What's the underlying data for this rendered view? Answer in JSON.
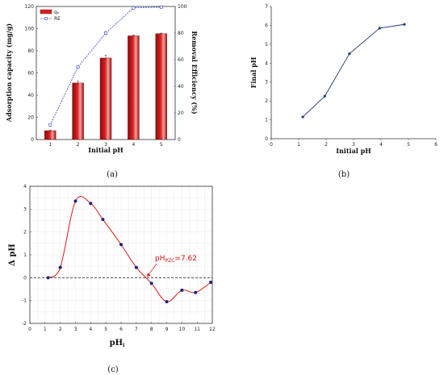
{
  "chart_data": [
    {
      "type": "bar",
      "panel_label": "(a)",
      "xlabel": "Initial pH",
      "ylabel": "Adsorption capacity (mg/g)",
      "y2label": "Removal Efficiency (%)",
      "categories": [
        "1",
        "2",
        "3",
        "4",
        "5"
      ],
      "ylim": [
        0,
        120
      ],
      "y_ticks": [
        "0",
        "20",
        "40",
        "60",
        "80",
        "100",
        "120"
      ],
      "y2lim": [
        0,
        100
      ],
      "y2_ticks": [
        "0",
        "20",
        "40",
        "60",
        "80",
        "100"
      ],
      "legend": {
        "position": "top-left",
        "bar_label": "qₑ",
        "line_label": "RE"
      },
      "bar_color": "#d92020",
      "line_color": "#3344cc",
      "series": [
        {
          "name": "qₑ",
          "axis": "left",
          "kind": "bar",
          "values": [
            8,
            51,
            73.5,
            93.5,
            95.5
          ],
          "errors": [
            0.5,
            1.5,
            2.5,
            0.8,
            0.5
          ]
        },
        {
          "name": "RE",
          "axis": "right",
          "kind": "line",
          "values": [
            11,
            54.5,
            80,
            99,
            99.5
          ],
          "errors": [
            0.5,
            1.5,
            2,
            0.3,
            0.3
          ]
        }
      ],
      "grid": false
    },
    {
      "type": "line",
      "panel_label": "(b)",
      "xlabel": "Initial pH",
      "ylabel": "Final pH",
      "xlim": [
        0,
        6
      ],
      "x_ticks": [
        "0",
        "1",
        "2",
        "3",
        "4",
        "5",
        "6"
      ],
      "ylim": [
        0,
        7
      ],
      "y_ticks": [
        "0",
        "1",
        "2",
        "3",
        "4",
        "5",
        "6",
        "7"
      ],
      "line_color": "#1f3a6e",
      "series": [
        {
          "x": [
            1.15,
            1.95,
            2.85,
            3.95,
            4.85
          ],
          "y": [
            1.15,
            2.25,
            4.5,
            5.85,
            6.05
          ]
        }
      ],
      "grid": false
    },
    {
      "type": "line",
      "panel_label": "(c)",
      "xlabel": "pH",
      "xlabel_sub": "i",
      "ylabel": "Δ pH",
      "xlim": [
        0,
        12
      ],
      "x_ticks": [
        "0",
        "1",
        "2",
        "3",
        "4",
        "5",
        "6",
        "7",
        "8",
        "9",
        "10",
        "11",
        "12"
      ],
      "ylim": [
        -2,
        4
      ],
      "y_ticks": [
        "-2",
        "-1",
        "0",
        "1",
        "2",
        "3",
        "4"
      ],
      "annotation": {
        "prefix": "pH",
        "sub": "PZC",
        "suffix": "=7.62",
        "x": 7.62,
        "y": 0
      },
      "line_color": "#e01818",
      "point_color": "#1a237e",
      "series": [
        {
          "x": [
            1.2,
            2,
            3,
            4,
            4.8,
            6,
            7,
            8,
            9,
            10,
            10.9,
            11.9
          ],
          "y": [
            0,
            0.45,
            3.35,
            3.25,
            2.55,
            1.45,
            0.45,
            -0.25,
            -1.05,
            -0.55,
            -0.65,
            -0.2
          ]
        }
      ],
      "grid": true
    }
  ]
}
